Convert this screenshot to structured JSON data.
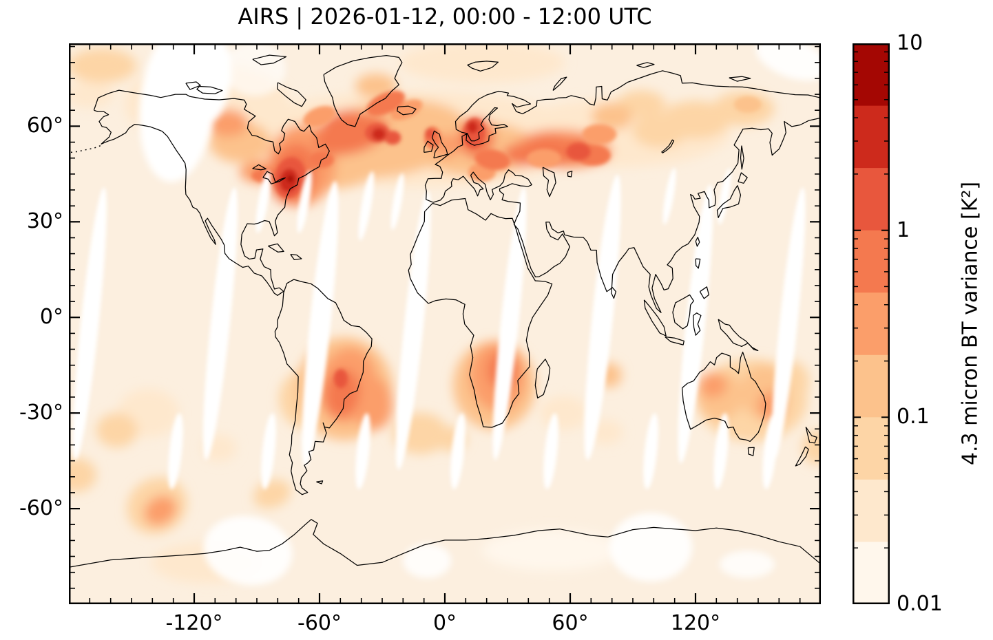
{
  "figure": {
    "title": "AIRS | 2026-01-12, 00:00 - 12:00 UTC"
  },
  "axes": {
    "x_tick_labels": [
      "-120°",
      "-60°",
      "0°",
      "60°",
      "120°"
    ],
    "x_tick_values": [
      -120,
      -60,
      0,
      60,
      120
    ],
    "y_tick_labels": [
      "60°",
      "30°",
      "0°",
      "-30°",
      "-60°"
    ],
    "y_tick_values": [
      60,
      30,
      0,
      -30,
      -60
    ],
    "lon_min": -180,
    "lon_max": 180,
    "lat_min": -90,
    "lat_max": 86,
    "x_minor_step_deg": 10,
    "y_minor_step_deg": 5
  },
  "colorbar": {
    "label": "4.3 micron BT variance [K²]",
    "scale": "log",
    "min": 0.01,
    "max": 10,
    "tick_labels": [
      "10",
      "1",
      "0.1",
      "0.01"
    ],
    "tick_values": [
      10,
      1,
      0.1,
      0.01
    ],
    "level_boundaries": [
      0.01,
      0.0215,
      0.0464,
      0.1,
      0.215,
      0.464,
      1,
      2.15,
      4.64,
      10
    ],
    "colors": [
      "#fff7ec",
      "#fee8cd",
      "#fdd5a6",
      "#fcc28c",
      "#fb9e6a",
      "#f4794f",
      "#e8573d",
      "#cd2a1c",
      "#a40703"
    ]
  },
  "chart_data": {
    "type": "heatmap",
    "projection": "equirectangular",
    "instrument": "AIRS",
    "quantity": "4.3 micron brightness temperature variance",
    "units": "K²",
    "period": "2026-01-12 00:00 - 12:00 UTC",
    "background_variance": 0.015,
    "map_background_color": "#fcefdf",
    "coastline_color": "#000000",
    "hotspots": [
      [
        -15,
        56,
        85.7,
        15.1,
        0,
        0.03
      ],
      [
        84,
        58,
        52.7,
        10.8,
        0,
        0.03
      ],
      [
        -114,
        67,
        39.6,
        13,
        0,
        0.03
      ],
      [
        -170,
        70,
        11.5,
        4.3,
        0,
        0.03
      ],
      [
        18,
        80,
        39.6,
        6.5,
        0,
        0.03
      ],
      [
        -142,
        -30,
        14.8,
        7.6,
        0,
        0.03
      ],
      [
        -108,
        -41,
        8.2,
        4.3,
        0,
        0.03
      ],
      [
        57,
        -30,
        11.5,
        5.4,
        0,
        0.03
      ],
      [
        77,
        -36,
        8.2,
        3.9,
        0,
        0.03
      ],
      [
        -114,
        -77,
        26.4,
        6.5,
        0,
        0.03
      ],
      [
        51,
        -73,
        33,
        6.5,
        0,
        0.013
      ],
      [
        147,
        -26,
        26.4,
        13,
        0,
        0.07
      ],
      [
        -164,
        79,
        16.5,
        5.4,
        0,
        0.07
      ],
      [
        -28,
        56,
        39.6,
        11.9,
        -8,
        0.15
      ],
      [
        14.5,
        53,
        29.7,
        8.6,
        0,
        0.15
      ],
      [
        -55,
        50,
        26.4,
        9.7,
        0,
        0.15
      ],
      [
        57,
        53,
        23.1,
        6,
        3,
        0.3
      ],
      [
        -98,
        55,
        14.8,
        6.5,
        0,
        0.15
      ],
      [
        -104,
        61,
        9.9,
        4.3,
        0,
        0.3
      ],
      [
        -33,
        72.6,
        9.9,
        3.9,
        0,
        0.15
      ],
      [
        74,
        57.5,
        8.2,
        3.2,
        0,
        0.3
      ],
      [
        80,
        63,
        9.9,
        4.3,
        0,
        0.15
      ],
      [
        94,
        67,
        11.5,
        4.3,
        0,
        0.07
      ],
      [
        103,
        58.6,
        13.2,
        5.4,
        0,
        0.07
      ],
      [
        120,
        62,
        16.5,
        6,
        0,
        0.07
      ],
      [
        143,
        65.5,
        14.8,
        5.4,
        0,
        0.07
      ],
      [
        145,
        66.8,
        6.6,
        2.6,
        0,
        0.15
      ],
      [
        -74,
        43.5,
        1.6,
        1.1,
        0,
        7
      ],
      [
        -74.8,
        43,
        4.3,
        3.7,
        10,
        3
      ],
      [
        -74.2,
        43.9,
        7.3,
        6.5,
        12,
        1.5
      ],
      [
        -72.5,
        45,
        10.9,
        9.7,
        15,
        0.7
      ],
      [
        -68.6,
        47.8,
        16.5,
        13,
        10,
        0.3
      ],
      [
        -59,
        49.5,
        5.9,
        2.6,
        0,
        0.7
      ],
      [
        -44.8,
        57.5,
        18.1,
        6,
        -15,
        0.7
      ],
      [
        -31.6,
        57.5,
        3.3,
        1.9,
        0,
        3
      ],
      [
        -32.3,
        57.9,
        5.9,
        3,
        0,
        1.5
      ],
      [
        -25,
        56.4,
        4,
        2.2,
        0,
        1.5
      ],
      [
        -48,
        60.7,
        11.5,
        4.3,
        -10,
        0.7
      ],
      [
        -60,
        63,
        8.2,
        3,
        -20,
        0.3
      ],
      [
        -68,
        53.2,
        9.9,
        5.4,
        0,
        0.3
      ],
      [
        -86,
        44.5,
        6.6,
        2.2,
        0,
        0.7
      ],
      [
        -88.4,
        45.6,
        9.9,
        3.5,
        0,
        0.3
      ],
      [
        -28.3,
        67.2,
        9.9,
        3.2,
        -25,
        0.7
      ],
      [
        -18.4,
        65.1,
        8.2,
        2.6,
        -25,
        0.3
      ],
      [
        13.9,
        57.9,
        5.3,
        4.8,
        5,
        1.5
      ],
      [
        15.2,
        56.4,
        8.6,
        6.5,
        0,
        0.7
      ],
      [
        13.2,
        59.7,
        2.6,
        1.9,
        0,
        3
      ],
      [
        -5.9,
        56.4,
        4,
        3.5,
        0,
        0.7
      ],
      [
        -7.2,
        57.7,
        2.3,
        1.7,
        0,
        1.5
      ],
      [
        0.7,
        53.8,
        6.6,
        3.9,
        0,
        0.3
      ],
      [
        22.8,
        49.5,
        8.6,
        3.2,
        10,
        0.7
      ],
      [
        17.8,
        45.6,
        6.6,
        3,
        0,
        0.3
      ],
      [
        37.6,
        51,
        9.9,
        3.5,
        5,
        0.7
      ],
      [
        47.5,
        49.9,
        8.2,
        3,
        0,
        0.3
      ],
      [
        50.8,
        52.5,
        13.2,
        4.8,
        5,
        0.7
      ],
      [
        64,
        52,
        5.9,
        2.8,
        0,
        1.5
      ],
      [
        62.3,
        52.5,
        9.9,
        3.9,
        0,
        0.7
      ],
      [
        71.2,
        50.8,
        8.2,
        3.2,
        0,
        0.7
      ],
      [
        -46.5,
        -21.3,
        13.8,
        11.9,
        10,
        0.3
      ],
      [
        -49.1,
        -23.9,
        8.2,
        7.6,
        10,
        0.7
      ],
      [
        -49.8,
        -19.2,
        3.3,
        3,
        0,
        1.5
      ],
      [
        -48.1,
        -22.4,
        23.1,
        16.2,
        0,
        0.15
      ],
      [
        -64.6,
        -25.6,
        14.8,
        9.7,
        0,
        0.07
      ],
      [
        -34.9,
        -26.7,
        9.9,
        8.6,
        -10,
        0.3
      ],
      [
        25.1,
        -18.7,
        13.2,
        10.8,
        -5,
        0.3
      ],
      [
        27.7,
        -16.6,
        7.3,
        6,
        0,
        0.7
      ],
      [
        23.7,
        -21.3,
        19.8,
        14,
        0,
        0.15
      ],
      [
        17.8,
        -26.7,
        9.9,
        6.5,
        0,
        0.07
      ],
      [
        78.8,
        -18.1,
        5.9,
        3.9,
        0,
        0.15
      ],
      [
        131.6,
        -24.5,
        11.5,
        7.6,
        0,
        0.15
      ],
      [
        128.3,
        -21.3,
        6.6,
        3.9,
        0,
        0.3
      ],
      [
        153,
        -23.5,
        11.5,
        8.6,
        0,
        0.15
      ],
      [
        156.3,
        -27.8,
        6.6,
        4.8,
        0,
        0.3
      ],
      [
        166.2,
        -20.2,
        8.2,
        6.5,
        0,
        0.07
      ],
      [
        -157,
        -35.4,
        9.9,
        5.4,
        0,
        0.07
      ],
      [
        -136.2,
        -60.6,
        8.2,
        4.3,
        -35,
        0.3
      ],
      [
        -137.8,
        -59.1,
        14.8,
        8.6,
        -30,
        0.07
      ],
      [
        -176.7,
        -49.4,
        9.9,
        5.4,
        0,
        0.07
      ],
      [
        -11.8,
        -36.4,
        13.2,
        6.5,
        0,
        0.07
      ],
      [
        3,
        -38.2,
        7.3,
        3.9,
        0,
        0.07
      ],
      [
        -82.7,
        -55.4,
        9.2,
        4.3,
        -20,
        0.07
      ],
      [
        177.7,
        -40.8,
        6.6,
        5.4,
        0,
        0.07
      ]
    ],
    "data_gaps": {
      "swaths": [
        [
          -170,
          -2,
          4.3,
          43,
          6
        ],
        [
          -107.5,
          -2,
          4.6,
          43,
          6
        ],
        [
          -59.7,
          -2,
          5,
          45,
          6
        ],
        [
          -15.1,
          -4,
          4.6,
          44,
          6
        ],
        [
          31,
          -2,
          4.3,
          43,
          6
        ],
        [
          75.5,
          0,
          5,
          45,
          6
        ],
        [
          120,
          -2,
          4.6,
          44,
          6
        ],
        [
          164.5,
          -2,
          4.3,
          43,
          6
        ]
      ],
      "north_tips": [
        [
          -87,
          36.3,
          2.3,
          10,
          10
        ],
        [
          -67.2,
          36.3,
          2.3,
          10,
          10
        ],
        [
          -37.6,
          35,
          2.3,
          11,
          10
        ],
        [
          -22.7,
          36.3,
          2,
          9,
          10
        ],
        [
          107.5,
          38,
          2,
          9,
          10
        ],
        [
          133.9,
          38,
          2,
          9,
          10
        ]
      ],
      "south_tips": [
        [
          -128.9,
          -42,
          3,
          12,
          6
        ],
        [
          -84.4,
          -42,
          3,
          12,
          6
        ],
        [
          -39.2,
          -42,
          3,
          12,
          6
        ],
        [
          6.3,
          -42,
          3,
          12,
          6
        ],
        [
          50.8,
          -42,
          3,
          12,
          6
        ],
        [
          98.6,
          -42,
          3,
          12,
          6
        ],
        [
          132.3,
          -42,
          3,
          12,
          6
        ],
        [
          155.7,
          -42,
          3,
          12,
          6
        ]
      ],
      "patches": [
        [
          -127.9,
          67.2,
          18.1,
          24.8,
          6,
          1
        ],
        [
          -112.4,
          74.8,
          9.9,
          14,
          6,
          1
        ],
        [
          -91,
          78,
          14.8,
          8.6,
          0,
          0.6
        ],
        [
          166.2,
          81.3,
          18.1,
          6,
          20,
          0.9
        ],
        [
          -94.3,
          -73.2,
          21.4,
          10.8,
          10,
          0.9
        ],
        [
          98.6,
          -72.1,
          19.8,
          10.8,
          0,
          0.9
        ],
        [
          -8.5,
          -76.4,
          11.5,
          5.4,
          0,
          0.85
        ],
        [
          144.7,
          -77.5,
          13.2,
          4.3,
          0,
          0.8
        ]
      ]
    }
  }
}
